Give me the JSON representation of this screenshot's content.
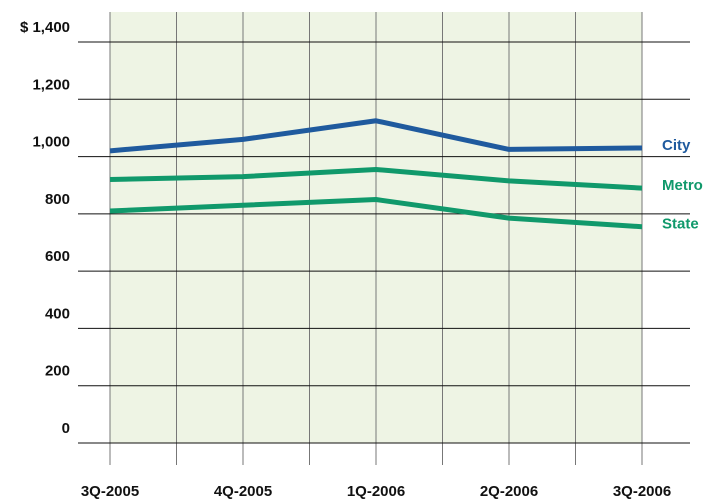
{
  "chart_data": {
    "type": "line",
    "categories": [
      "3Q-2005",
      "4Q-2005",
      "1Q-2006",
      "2Q-2006",
      "3Q-2006"
    ],
    "series": [
      {
        "name": "City",
        "color": "#1f5a9e",
        "values": [
          1020,
          1060,
          1125,
          1025,
          1030
        ]
      },
      {
        "name": "Metro",
        "color": "#10996b",
        "values": [
          920,
          930,
          955,
          915,
          890
        ]
      },
      {
        "name": "State",
        "color": "#10996b",
        "values": [
          810,
          830,
          850,
          785,
          755
        ]
      }
    ],
    "ylim": [
      0,
      1400
    ],
    "yticks": [
      0,
      200,
      400,
      600,
      {
        "value": 800,
        "label": "800"
      },
      {
        "value": 1000,
        "label": "1,000"
      },
      {
        "value": 1200,
        "label": "1,200"
      },
      {
        "value": 1400,
        "label": "$ 1,400"
      }
    ],
    "grid": true,
    "background": "#eef4e4"
  }
}
